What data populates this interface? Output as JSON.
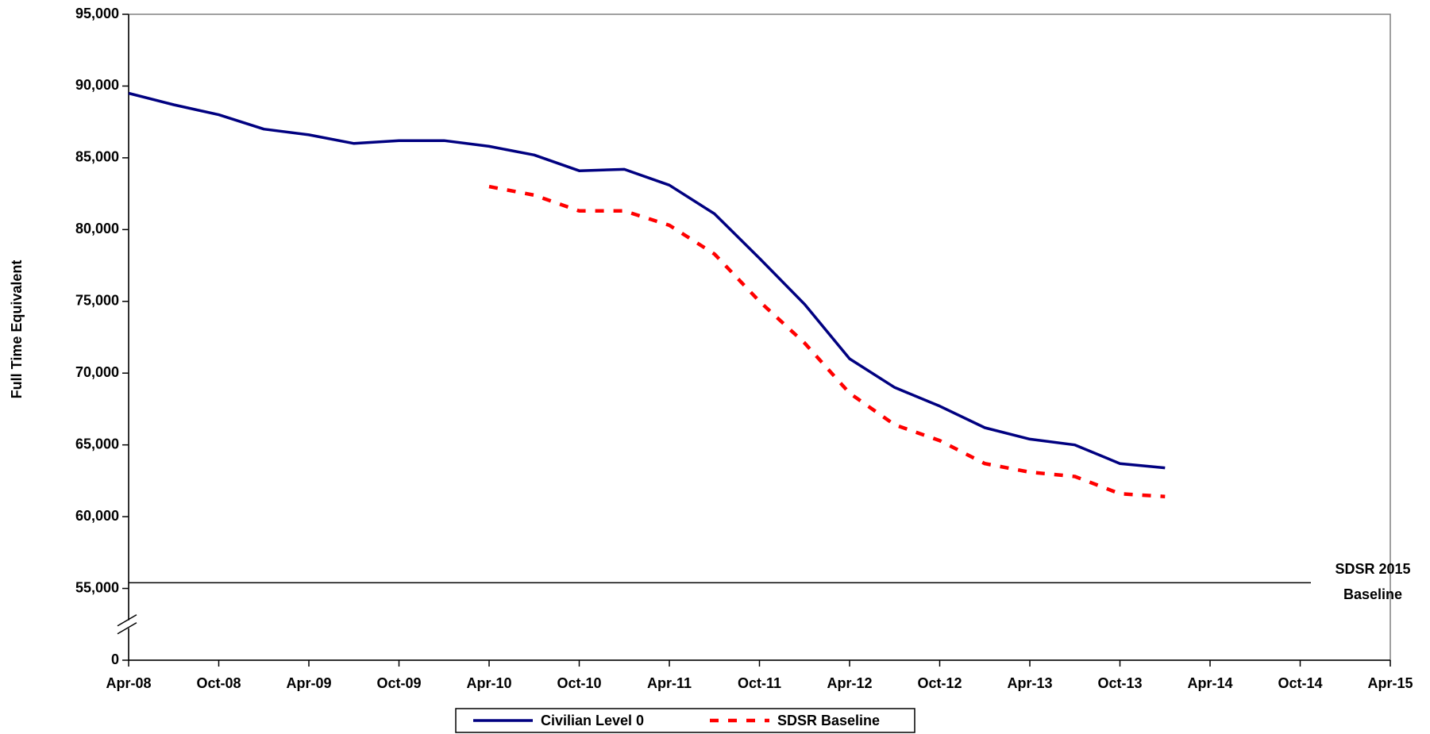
{
  "chart_data": {
    "type": "line",
    "y_label": "Full Time Equivalent",
    "categories": [
      "Apr-08",
      null,
      "Oct-08",
      null,
      "Apr-09",
      null,
      "Oct-09",
      null,
      "Apr-10",
      null,
      "Oct-10",
      null,
      "Apr-11",
      null,
      "Oct-11",
      null,
      "Apr-12",
      null,
      "Oct-12",
      null,
      "Apr-13",
      null,
      "Oct-13",
      null,
      "Apr-14",
      null,
      "Oct-14",
      null,
      "Apr-15"
    ],
    "series": [
      {
        "name": "Civilian Level 0",
        "color": "#000080",
        "dash": false,
        "values": [
          89500,
          88700,
          88000,
          87000,
          86600,
          86000,
          86200,
          86200,
          85800,
          85200,
          84100,
          84200,
          83100,
          81100,
          78000,
          74800,
          71000,
          69000,
          67700,
          66200,
          65400,
          65000,
          63700,
          63400,
          null,
          null,
          null,
          null,
          null
        ]
      },
      {
        "name": "SDSR Baseline",
        "color": "#ff0000",
        "dash": true,
        "values": [
          null,
          null,
          null,
          null,
          null,
          null,
          null,
          null,
          83000,
          82400,
          81300,
          81300,
          80300,
          78300,
          75000,
          72100,
          68600,
          66400,
          65300,
          63700,
          63100,
          62800,
          61600,
          61400,
          null,
          null,
          null,
          null,
          null
        ]
      }
    ],
    "ylim": [
      0,
      95000
    ],
    "yticks": [
      0,
      {
        "value": 55000,
        "label": "55,000"
      },
      {
        "value": 60000,
        "label": "60,000"
      },
      {
        "value": 65000,
        "label": "65,000"
      },
      {
        "value": 70000,
        "label": "70,000"
      },
      {
        "value": 75000,
        "label": "75,000"
      },
      {
        "value": 80000,
        "label": "80,000"
      },
      {
        "value": 85000,
        "label": "85,000"
      },
      {
        "value": 90000,
        "label": "90,000"
      },
      {
        "value": 95000,
        "label": "95,000"
      }
    ],
    "y_axis_break": true,
    "grid": false,
    "legend": "bottom",
    "reference_line": {
      "value": 55400,
      "color": "#000000",
      "label": [
        "SDSR 2015",
        "Baseline"
      ]
    }
  }
}
